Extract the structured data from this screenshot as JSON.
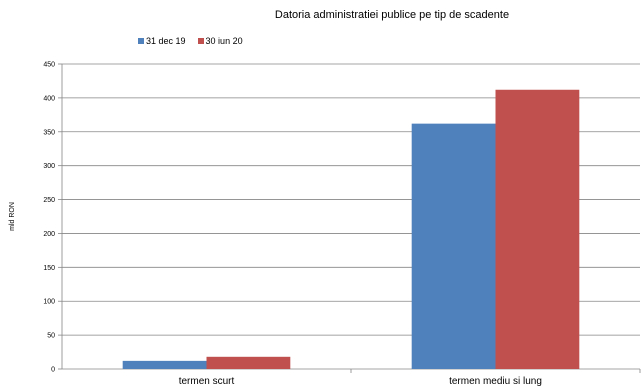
{
  "chart_data": {
    "type": "bar",
    "title": "Datoria administratiei publice  pe tip de scadente",
    "ylabel": "mld RON",
    "xlabel": "",
    "categories": [
      "termen scurt",
      "termen mediu si lung"
    ],
    "series": [
      {
        "name": "31 dec 19",
        "color": "#4f81bd",
        "values": [
          12,
          362
        ]
      },
      {
        "name": "30 iun 20",
        "color": "#c0504d",
        "values": [
          18,
          412
        ]
      }
    ],
    "ylim": [
      0,
      450
    ],
    "yticks": [
      0,
      50,
      100,
      150,
      200,
      250,
      300,
      350,
      400,
      450
    ],
    "grid": true,
    "legend_position": "top-left"
  }
}
